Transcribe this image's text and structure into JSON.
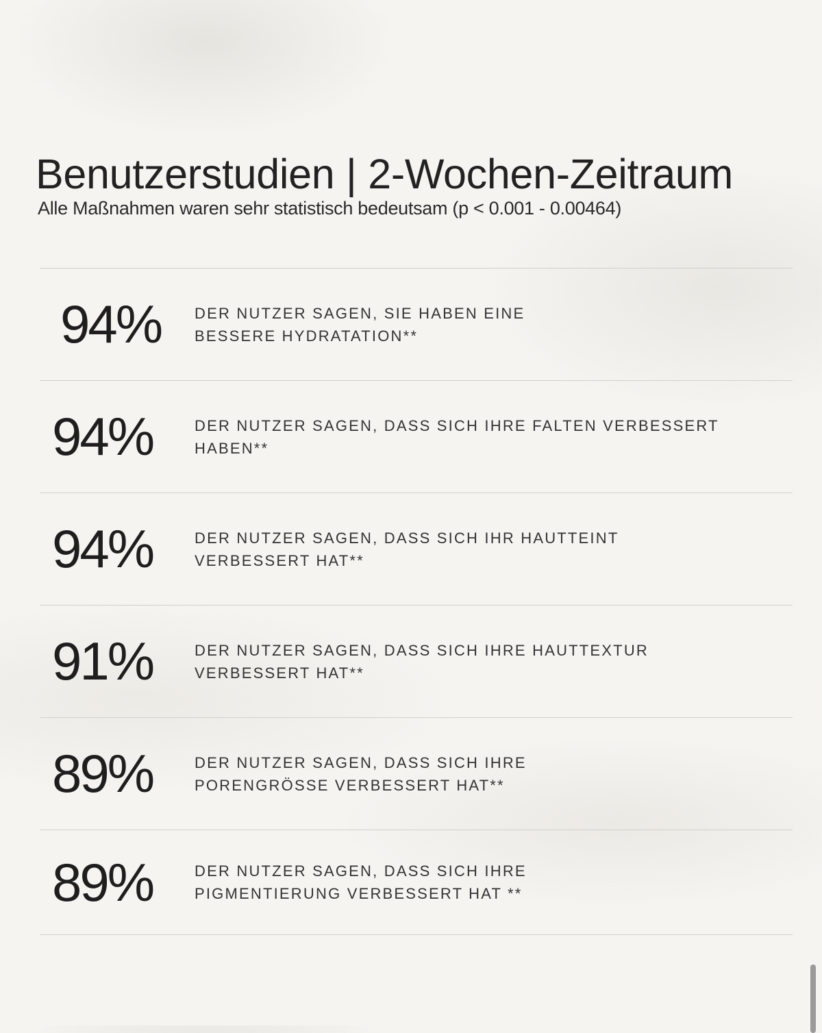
{
  "header": {
    "title": "Benutzerstudien | 2-Wochen-Zeitraum",
    "subtitle": "Alle Maßnahmen waren sehr statistisch bedeutsam (p < 0.001 - 0.00464)"
  },
  "stats": [
    {
      "percent": "94%",
      "text": "DER NUTZER SAGEN, SIE HABEN EINE BESSERE HYDRATATION**"
    },
    {
      "percent": "94%",
      "text": "DER NUTZER SAGEN, DASS SICH IHRE FALTEN VERBESSERT HABEN**"
    },
    {
      "percent": "94%",
      "text": "DER NUTZER SAGEN, DASS SICH IHR HAUTTEINT VERBESSERT HAT**"
    },
    {
      "percent": "91%",
      "text": "DER NUTZER SAGEN, DASS SICH IHRE HAUTTEXTUR VERBESSERT HAT**"
    },
    {
      "percent": "89%",
      "text": "DER NUTZER SAGEN, DASS SICH IHRE PORENGRÖßE VERBESSERT HAT**"
    },
    {
      "percent": "89%",
      "text": "DER NUTZER SAGEN, DASS SICH IHRE PIGMENTIERUNG VERBESSERT HAT **"
    }
  ]
}
